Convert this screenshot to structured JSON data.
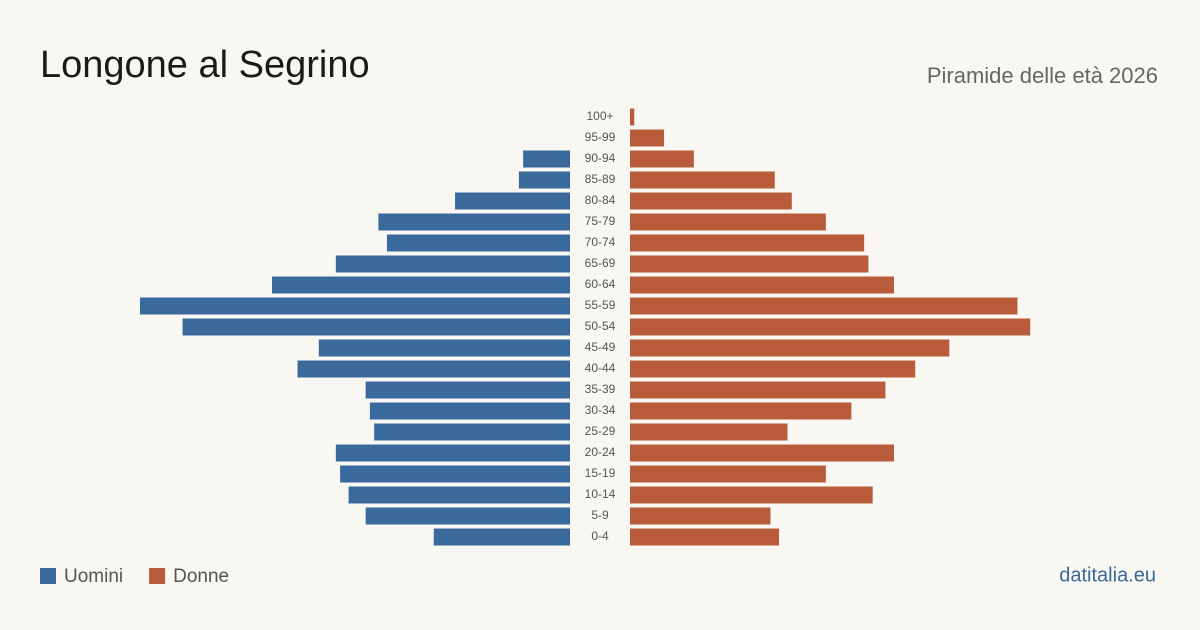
{
  "chart_data": {
    "type": "pyramid",
    "title": "Longone al Segrino",
    "subtitle": "Piramide delle età 2026",
    "source": "datitalia.eu",
    "categories": [
      "100+",
      "95-99",
      "90-94",
      "85-89",
      "80-84",
      "75-79",
      "70-74",
      "65-69",
      "60-64",
      "55-59",
      "50-54",
      "45-49",
      "40-44",
      "35-39",
      "30-34",
      "25-29",
      "20-24",
      "15-19",
      "10-14",
      "5-9",
      "0-4"
    ],
    "series": [
      {
        "name": "Uomini",
        "color": "#3a6a9b",
        "values": [
          0,
          0,
          11,
          12,
          27,
          45,
          43,
          55,
          70,
          101,
          91,
          59,
          64,
          48,
          47,
          46,
          55,
          54,
          52,
          48,
          32
        ]
      },
      {
        "name": "Donne",
        "color": "#b85c3c",
        "values": [
          1,
          8,
          15,
          34,
          38,
          46,
          55,
          56,
          62,
          91,
          94,
          75,
          67,
          60,
          52,
          37,
          62,
          46,
          57,
          33,
          35
        ]
      }
    ]
  }
}
